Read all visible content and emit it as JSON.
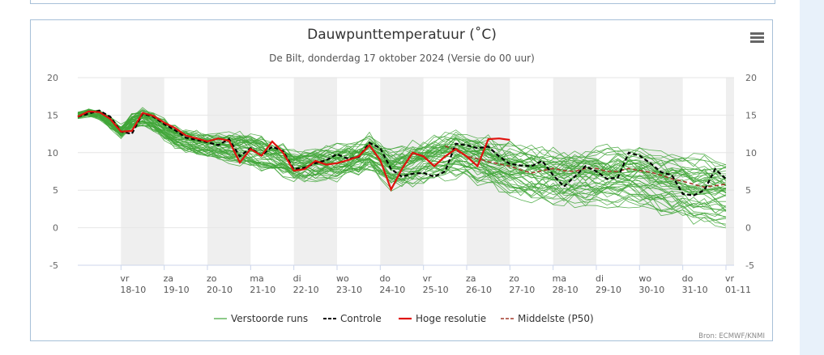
{
  "credits": "Bron: ECMWF/KNMI",
  "colors": {
    "ensemble": "#41a638",
    "control": "#000000",
    "hires": "#e0120e",
    "median": "#a33a2c",
    "weekend_band": "#efefef",
    "frame": "#a7c0d8"
  },
  "chart_data": {
    "type": "line",
    "title": "Dauwpunttemperatuur (˚C)",
    "subtitle": "De Bilt, donderdag 17 oktober 2024 (Versie do 00 uur)",
    "x_unit": "days since 2024-10-17 00:00",
    "xlim": [
      0,
      15
    ],
    "ylim": [
      -5,
      20
    ],
    "yticks": [
      -5,
      0,
      5,
      10,
      15,
      20
    ],
    "grid": true,
    "dual_y_axis": true,
    "legend_position": "bottom",
    "x_ticks": [
      {
        "x": 1,
        "day": "vr",
        "date": "18-10"
      },
      {
        "x": 2,
        "day": "za",
        "date": "19-10"
      },
      {
        "x": 3,
        "day": "zo",
        "date": "20-10"
      },
      {
        "x": 4,
        "day": "ma",
        "date": "21-10"
      },
      {
        "x": 5,
        "day": "di",
        "date": "22-10"
      },
      {
        "x": 6,
        "day": "wo",
        "date": "23-10"
      },
      {
        "x": 7,
        "day": "do",
        "date": "24-10"
      },
      {
        "x": 8,
        "day": "vr",
        "date": "25-10"
      },
      {
        "x": 9,
        "day": "za",
        "date": "26-10"
      },
      {
        "x": 10,
        "day": "zo",
        "date": "27-10"
      },
      {
        "x": 11,
        "day": "ma",
        "date": "28-10"
      },
      {
        "x": 12,
        "day": "di",
        "date": "29-10"
      },
      {
        "x": 13,
        "day": "wo",
        "date": "30-10"
      },
      {
        "x": 14,
        "day": "do",
        "date": "31-10"
      },
      {
        "x": 15,
        "day": "vr",
        "date": "01-11"
      }
    ],
    "bands": [
      [
        1,
        2
      ],
      [
        3,
        4
      ],
      [
        5,
        6
      ],
      [
        7,
        8
      ],
      [
        9,
        10
      ],
      [
        11,
        12
      ],
      [
        13,
        14
      ],
      [
        15,
        15.2
      ]
    ],
    "legend": [
      {
        "name": "Verstoorde runs",
        "style": "ensemble"
      },
      {
        "name": "Controle",
        "style": "control"
      },
      {
        "name": "Hoge resolutie",
        "style": "hires"
      },
      {
        "name": "Middelste (P50)",
        "style": "median"
      }
    ],
    "ensemble": {
      "count": 50,
      "x_start": 0,
      "x_end": 15.05,
      "step": 0.25,
      "median_anchors": [
        [
          0,
          15
        ],
        [
          0.4,
          15.5
        ],
        [
          0.8,
          13.8
        ],
        [
          1,
          12.8
        ],
        [
          1.4,
          15
        ],
        [
          1.8,
          14
        ],
        [
          2.3,
          12
        ],
        [
          2.8,
          11.2
        ],
        [
          3.3,
          10.8
        ],
        [
          3.8,
          10.6
        ],
        [
          4.2,
          10.2
        ],
        [
          4.6,
          9.5
        ],
        [
          5,
          8.4
        ],
        [
          5.5,
          8.6
        ],
        [
          6,
          8.8
        ],
        [
          6.5,
          9.3
        ],
        [
          6.8,
          10.2
        ],
        [
          7.2,
          7.8
        ],
        [
          7.7,
          8.6
        ],
        [
          8.3,
          9.5
        ],
        [
          8.8,
          10.3
        ],
        [
          9.3,
          9.3
        ],
        [
          9.8,
          8.2
        ],
        [
          10.3,
          7.6
        ],
        [
          10.8,
          7.2
        ],
        [
          11.3,
          7
        ],
        [
          11.8,
          6.9
        ],
        [
          12.3,
          7
        ],
        [
          12.8,
          7.1
        ],
        [
          13.3,
          6.6
        ],
        [
          13.8,
          5.8
        ],
        [
          14.3,
          5.5
        ],
        [
          14.8,
          5.1
        ],
        [
          15.05,
          4.9
        ]
      ],
      "spread_anchors": [
        [
          0,
          0.3
        ],
        [
          1,
          0.8
        ],
        [
          2,
          1.2
        ],
        [
          3,
          1.5
        ],
        [
          4,
          2.0
        ],
        [
          5,
          1.8
        ],
        [
          6,
          2.0
        ],
        [
          7,
          2.2
        ],
        [
          8,
          2.5
        ],
        [
          9,
          2.7
        ],
        [
          10,
          2.9
        ],
        [
          11,
          3.0
        ],
        [
          12,
          3.0
        ],
        [
          13,
          3.1
        ],
        [
          14,
          3.3
        ],
        [
          15,
          3.6
        ]
      ]
    },
    "series": [
      {
        "name": "Controle",
        "style": "control",
        "x": [
          0,
          0.25,
          0.5,
          0.75,
          1,
          1.25,
          1.5,
          1.75,
          2,
          2.25,
          2.5,
          2.75,
          3,
          3.25,
          3.5,
          3.75,
          4,
          4.25,
          4.5,
          4.75,
          5,
          5.25,
          5.5,
          5.75,
          6,
          6.25,
          6.5,
          6.75,
          7,
          7.25,
          7.5,
          7.75,
          8,
          8.25,
          8.5,
          8.75,
          9,
          9.25,
          9.5,
          9.75,
          10,
          10.25,
          10.5,
          10.75,
          11,
          11.25,
          11.5,
          11.75,
          12,
          12.25,
          12.5,
          12.75,
          13,
          13.25,
          13.5,
          13.75,
          14,
          14.25,
          14.5,
          14.75,
          15
        ],
        "values": [
          14.8,
          15.2,
          15.6,
          14.8,
          12.8,
          12.5,
          15.2,
          14.8,
          13.8,
          13,
          12,
          11.7,
          11.4,
          11,
          11.8,
          9.5,
          10.6,
          9.6,
          10.8,
          10.2,
          7.8,
          8,
          8.6,
          9,
          9.8,
          9.2,
          9.4,
          11.3,
          10.6,
          7.8,
          6.8,
          7.2,
          7.3,
          6.8,
          7.5,
          11.2,
          11,
          10.6,
          10.8,
          9.5,
          8.5,
          8.3,
          8.2,
          8.9,
          7,
          5.5,
          6.8,
          8.2,
          7.5,
          6.5,
          6.7,
          10,
          9.6,
          8.6,
          7.4,
          7,
          4.5,
          4.3,
          5,
          7.8,
          6.5
        ]
      },
      {
        "name": "Hoge resolutie",
        "style": "hires",
        "x": [
          0,
          0.25,
          0.5,
          0.75,
          1,
          1.25,
          1.5,
          1.75,
          2,
          2.25,
          2.5,
          2.75,
          3,
          3.25,
          3.5,
          3.75,
          4,
          4.25,
          4.5,
          4.75,
          5,
          5.25,
          5.5,
          5.75,
          6,
          6.25,
          6.5,
          6.75,
          7,
          7.25,
          7.5,
          7.75,
          8,
          8.25,
          8.5,
          8.75,
          9,
          9.25,
          9.5,
          9.75,
          10
        ],
        "values": [
          14.8,
          15.5,
          15.4,
          14.5,
          12.8,
          12.9,
          15.3,
          14.9,
          14,
          13.3,
          12.3,
          11.9,
          11.5,
          11.9,
          11.6,
          8.7,
          10.5,
          9.6,
          11.5,
          10,
          7.6,
          7.8,
          8.9,
          8.4,
          8.6,
          9,
          9.5,
          11,
          9,
          5.1,
          7.8,
          10,
          9.5,
          8.2,
          9.5,
          10.5,
          9.5,
          8.2,
          11.8,
          11.9,
          11.7
        ]
      },
      {
        "name": "Middelste (P50)",
        "style": "median",
        "x": [
          8.5,
          8.75,
          9,
          9.25,
          9.5,
          9.75,
          10,
          10.25,
          10.5,
          10.75,
          11,
          11.25,
          11.5,
          11.75,
          12,
          12.25,
          12.5,
          12.75,
          13,
          13.25,
          13.5,
          13.75,
          14,
          14.25,
          14.5,
          14.75,
          15
        ],
        "values": [
          10.9,
          10.3,
          9.5,
          9.2,
          8.8,
          8.5,
          8.2,
          7.7,
          7.3,
          7.6,
          7.9,
          7.6,
          7.5,
          7.9,
          7.9,
          7.5,
          7.5,
          7.9,
          7.6,
          7.4,
          7,
          6.5,
          6.2,
          5.8,
          5.4,
          5.6,
          5.8
        ]
      }
    ]
  }
}
